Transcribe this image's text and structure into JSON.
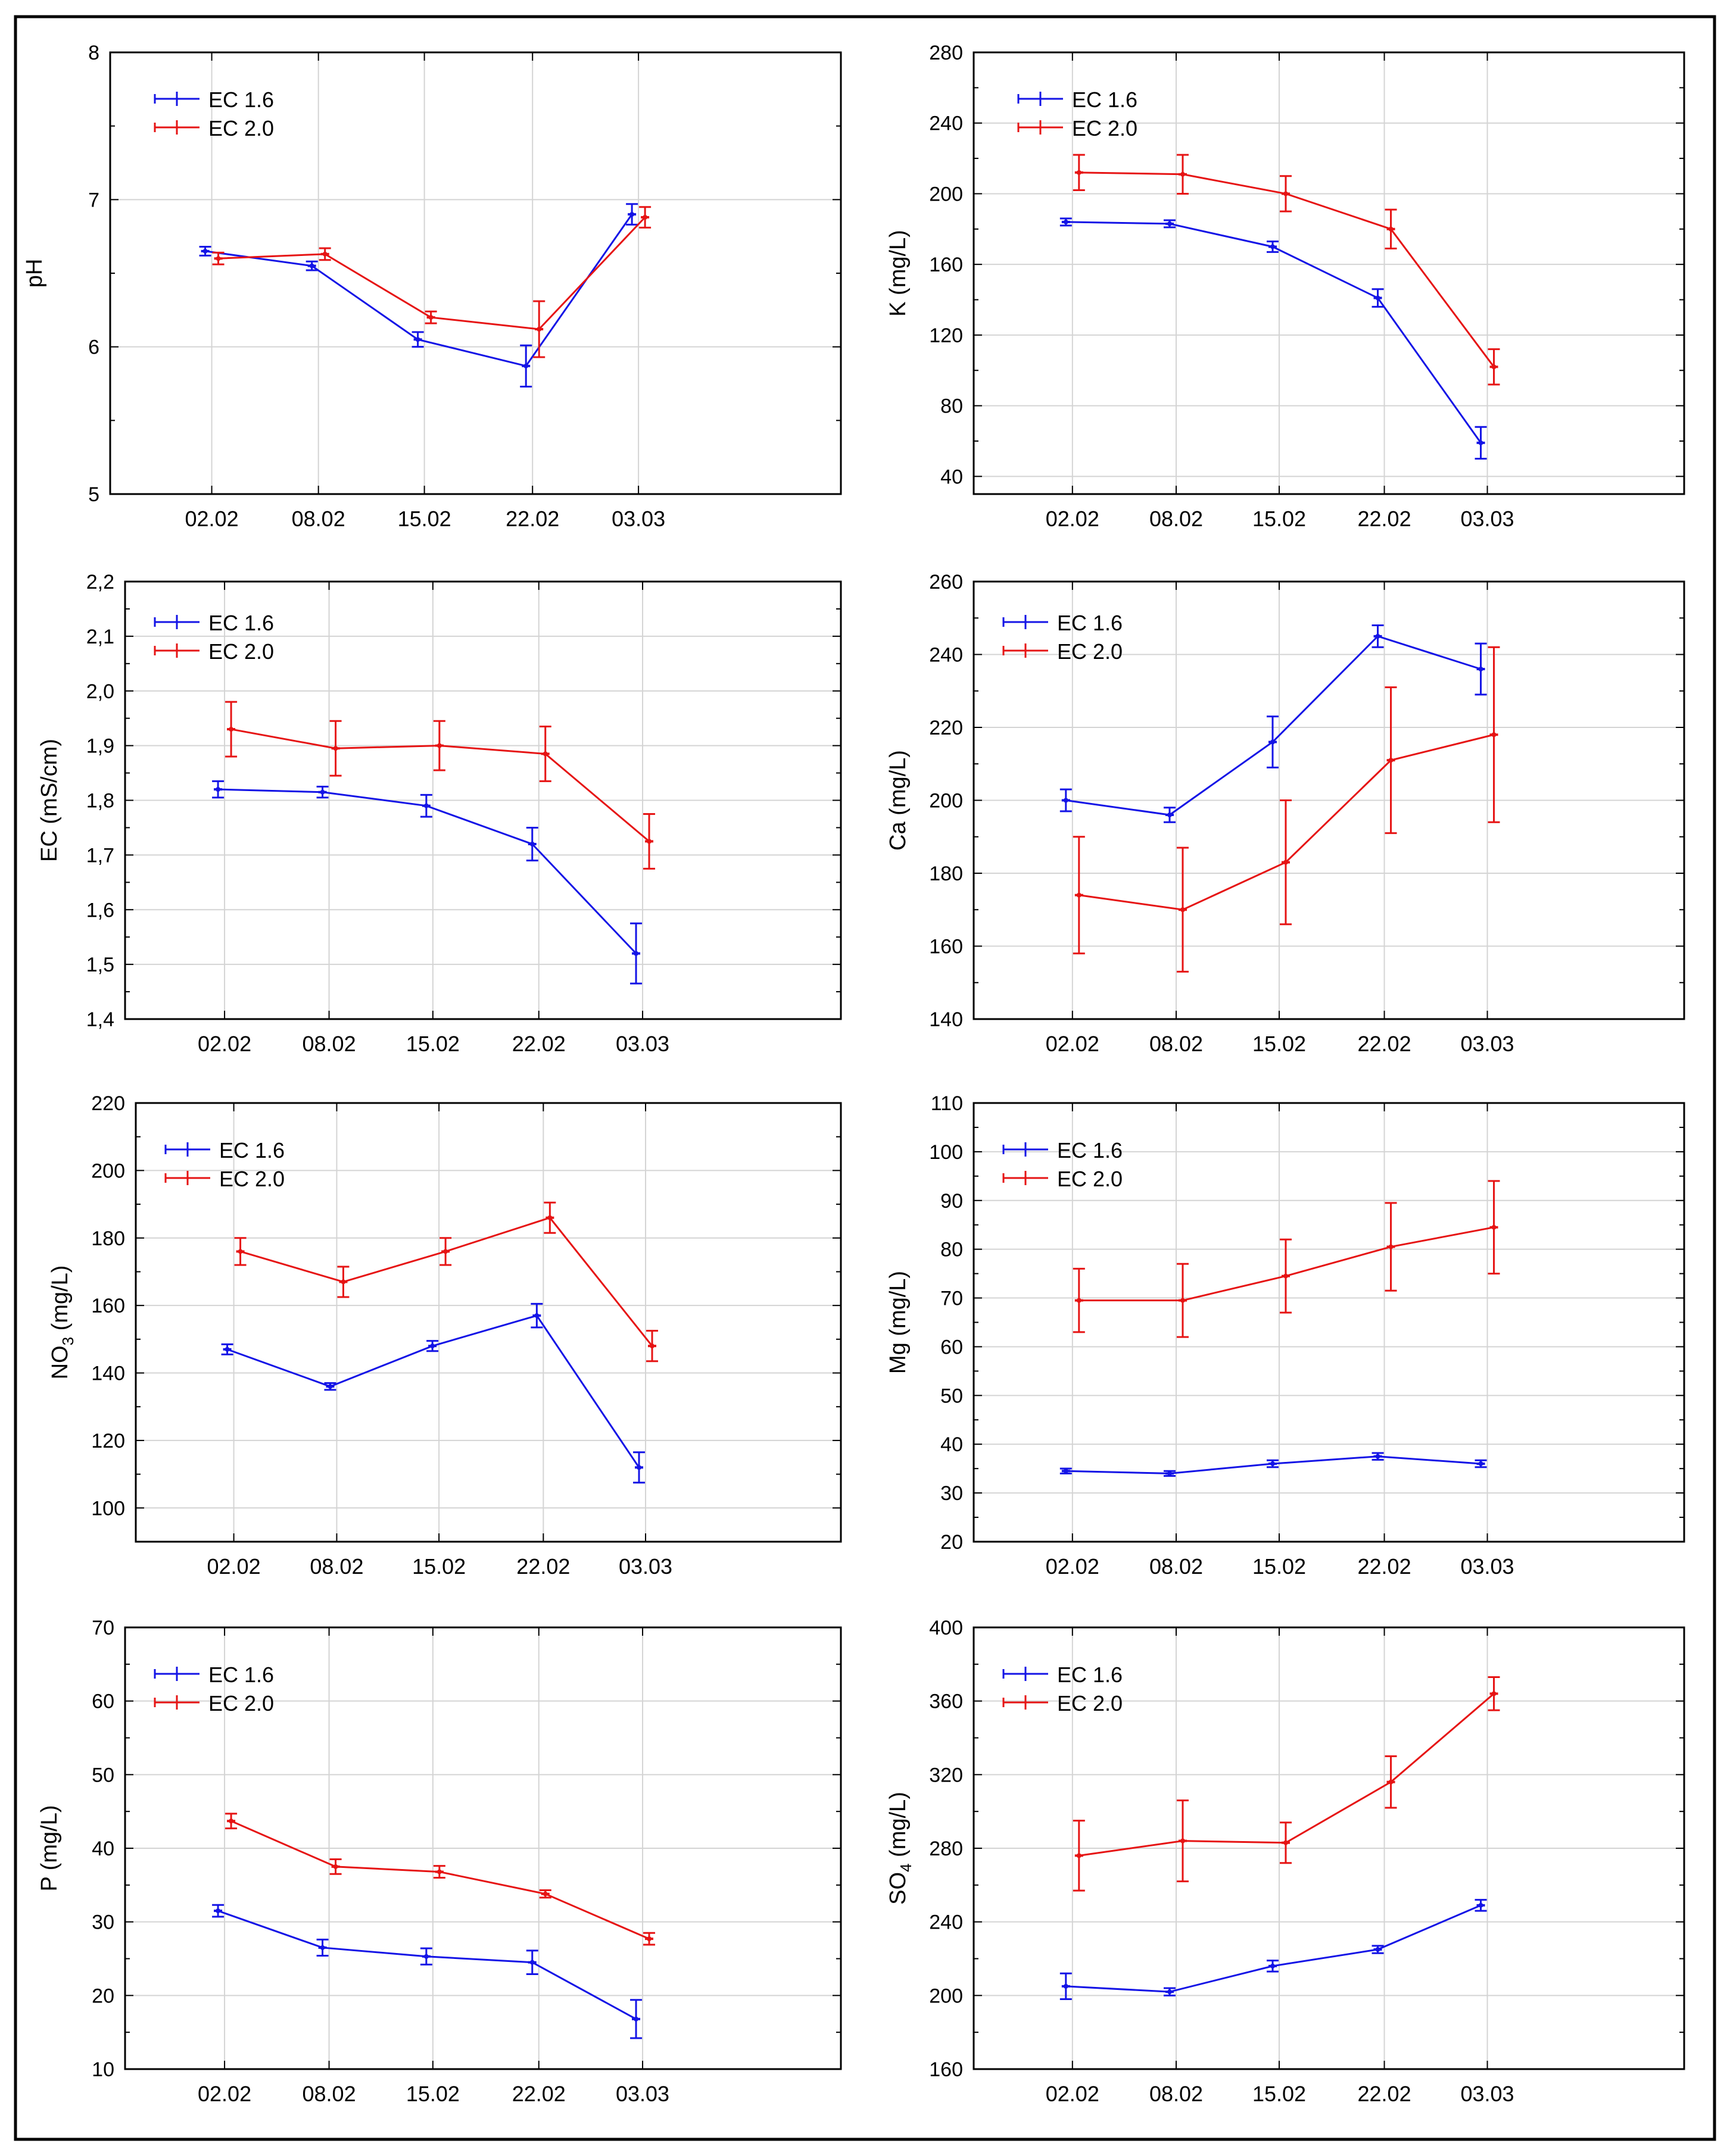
{
  "colors": {
    "ec16": "#1414e6",
    "ec20": "#e61414",
    "grid": "#d4d4d4",
    "frame": "#000000"
  },
  "chart_data": [
    {
      "type": "line",
      "ylabel": "pH",
      "ylabel_sub": "",
      "categories": [
        "02.02",
        "08.02",
        "15.02",
        "22.02",
        "03.03"
      ],
      "ylim": [
        5,
        8
      ],
      "yticks": [
        5,
        6,
        7,
        8
      ],
      "ytick_labels": [
        "5",
        "6",
        "7",
        "8"
      ],
      "legend": [
        "EC 1.6",
        "EC 2.0"
      ],
      "series": [
        {
          "name": "EC 1.6",
          "values": [
            6.65,
            6.55,
            6.05,
            5.87,
            6.9
          ],
          "errors": [
            0.03,
            0.03,
            0.05,
            0.14,
            0.07
          ]
        },
        {
          "name": "EC 2.0",
          "values": [
            6.6,
            6.63,
            6.2,
            6.12,
            6.88
          ],
          "errors": [
            0.04,
            0.04,
            0.04,
            0.19,
            0.07
          ]
        }
      ]
    },
    {
      "type": "line",
      "ylabel": "K (mg/L)",
      "ylabel_sub": "",
      "categories": [
        "02.02",
        "08.02",
        "15.02",
        "22.02",
        "03.03"
      ],
      "ylim": [
        30,
        280
      ],
      "yticks": [
        40,
        80,
        120,
        160,
        200,
        240,
        280
      ],
      "ytick_labels": [
        "40",
        "80",
        "120",
        "160",
        "200",
        "240",
        "280"
      ],
      "legend": [
        "EC 1.6",
        "EC 2.0"
      ],
      "series": [
        {
          "name": "EC 1.6",
          "values": [
            184,
            183,
            170,
            141,
            59
          ],
          "errors": [
            2,
            2,
            3,
            5,
            9
          ]
        },
        {
          "name": "EC 2.0",
          "values": [
            212,
            211,
            200,
            180,
            102
          ],
          "errors": [
            10,
            11,
            10,
            11,
            10
          ]
        }
      ]
    },
    {
      "type": "line",
      "ylabel": "EC (mS/cm)",
      "ylabel_sub": "",
      "categories": [
        "02.02",
        "08.02",
        "15.02",
        "22.02",
        "03.03"
      ],
      "ylim": [
        1.4,
        2.2
      ],
      "yticks": [
        1.4,
        1.5,
        1.6,
        1.7,
        1.8,
        1.9,
        2.0,
        2.1,
        2.2
      ],
      "ytick_labels": [
        "1,4",
        "1,5",
        "1,6",
        "1,7",
        "1,8",
        "1,9",
        "2,0",
        "2,1",
        "2,2"
      ],
      "legend": [
        "EC 1.6",
        "EC 2.0"
      ],
      "series": [
        {
          "name": "EC 1.6",
          "values": [
            1.82,
            1.815,
            1.79,
            1.72,
            1.52
          ],
          "errors": [
            0.015,
            0.01,
            0.02,
            0.03,
            0.055
          ]
        },
        {
          "name": "EC 2.0",
          "values": [
            1.93,
            1.895,
            1.9,
            1.885,
            1.725
          ],
          "errors": [
            0.05,
            0.05,
            0.045,
            0.05,
            0.05
          ]
        }
      ]
    },
    {
      "type": "line",
      "ylabel": "Ca (mg/L)",
      "ylabel_sub": "",
      "categories": [
        "02.02",
        "08.02",
        "15.02",
        "22.02",
        "03.03"
      ],
      "ylim": [
        140,
        260
      ],
      "yticks": [
        140,
        160,
        180,
        200,
        220,
        240,
        260
      ],
      "ytick_labels": [
        "140",
        "160",
        "180",
        "200",
        "220",
        "240",
        "260"
      ],
      "legend": [
        "EC 1.6",
        "EC 2.0"
      ],
      "series": [
        {
          "name": "EC 1.6",
          "values": [
            200,
            196,
            216,
            245,
            236
          ],
          "errors": [
            3,
            2,
            7,
            3,
            7
          ]
        },
        {
          "name": "EC 2.0",
          "values": [
            174,
            170,
            183,
            211,
            218
          ],
          "errors": [
            16,
            17,
            17,
            20,
            24
          ]
        }
      ]
    },
    {
      "type": "line",
      "ylabel": "NO",
      "ylabel_sub": "3",
      "ylabel_tail": " (mg/L)",
      "categories": [
        "02.02",
        "08.02",
        "15.02",
        "22.02",
        "03.03"
      ],
      "ylim": [
        90,
        220
      ],
      "yticks": [
        100,
        120,
        140,
        160,
        180,
        200,
        220
      ],
      "ytick_labels": [
        "100",
        "120",
        "140",
        "160",
        "180",
        "200",
        "220"
      ],
      "legend": [
        "EC 1.6",
        "EC 2.0"
      ],
      "series": [
        {
          "name": "EC 1.6",
          "values": [
            147,
            136,
            148,
            157,
            112
          ],
          "errors": [
            1.5,
            1,
            1.5,
            3.5,
            4.5
          ]
        },
        {
          "name": "EC 2.0",
          "values": [
            176,
            167,
            176,
            186,
            148
          ],
          "errors": [
            4,
            4.5,
            4,
            4.5,
            4.5
          ]
        }
      ]
    },
    {
      "type": "line",
      "ylabel": "Mg (mg/L)",
      "ylabel_sub": "",
      "categories": [
        "02.02",
        "08.02",
        "15.02",
        "22.02",
        "03.03"
      ],
      "ylim": [
        20,
        110
      ],
      "yticks": [
        20,
        30,
        40,
        50,
        60,
        70,
        80,
        90,
        100,
        110
      ],
      "ytick_labels": [
        "20",
        "30",
        "40",
        "50",
        "60",
        "70",
        "80",
        "90",
        "100",
        "110"
      ],
      "legend": [
        "EC 1.6",
        "EC 2.0"
      ],
      "series": [
        {
          "name": "EC 1.6",
          "values": [
            34.5,
            34,
            36,
            37.5,
            36
          ],
          "errors": [
            0.5,
            0.5,
            0.7,
            0.7,
            0.7
          ]
        },
        {
          "name": "EC 2.0",
          "values": [
            69.5,
            69.5,
            74.5,
            80.5,
            84.5
          ],
          "errors": [
            6.5,
            7.5,
            7.5,
            9,
            9.5
          ]
        }
      ]
    },
    {
      "type": "line",
      "ylabel": "P (mg/L)",
      "ylabel_sub": "",
      "categories": [
        "02.02",
        "08.02",
        "15.02",
        "22.02",
        "03.03"
      ],
      "ylim": [
        10,
        70
      ],
      "yticks": [
        10,
        20,
        30,
        40,
        50,
        60,
        70
      ],
      "ytick_labels": [
        "10",
        "20",
        "30",
        "40",
        "50",
        "60",
        "70"
      ],
      "legend": [
        "EC 1.6",
        "EC 2.0"
      ],
      "series": [
        {
          "name": "EC 1.6",
          "values": [
            31.5,
            26.5,
            25.3,
            24.5,
            16.8
          ],
          "errors": [
            0.8,
            1.1,
            1.1,
            1.6,
            2.6
          ]
        },
        {
          "name": "EC 2.0",
          "values": [
            43.7,
            37.5,
            36.8,
            33.8,
            27.7
          ],
          "errors": [
            1.0,
            1.0,
            0.8,
            0.5,
            0.8
          ]
        }
      ]
    },
    {
      "type": "line",
      "ylabel": "SO",
      "ylabel_sub": "4",
      "ylabel_tail": " (mg/L)",
      "categories": [
        "02.02",
        "08.02",
        "15.02",
        "22.02",
        "03.03"
      ],
      "ylim": [
        160,
        400
      ],
      "yticks": [
        160,
        200,
        240,
        280,
        320,
        360,
        400
      ],
      "ytick_labels": [
        "160",
        "200",
        "240",
        "280",
        "320",
        "360",
        "400"
      ],
      "legend": [
        "EC 1.6",
        "EC 2.0"
      ],
      "series": [
        {
          "name": "EC 1.6",
          "values": [
            205,
            202,
            216,
            225,
            249
          ],
          "errors": [
            7,
            2,
            3,
            2,
            3
          ]
        },
        {
          "name": "EC 2.0",
          "values": [
            276,
            284,
            283,
            316,
            364
          ],
          "errors": [
            19,
            22,
            11,
            14,
            9
          ]
        }
      ]
    }
  ]
}
